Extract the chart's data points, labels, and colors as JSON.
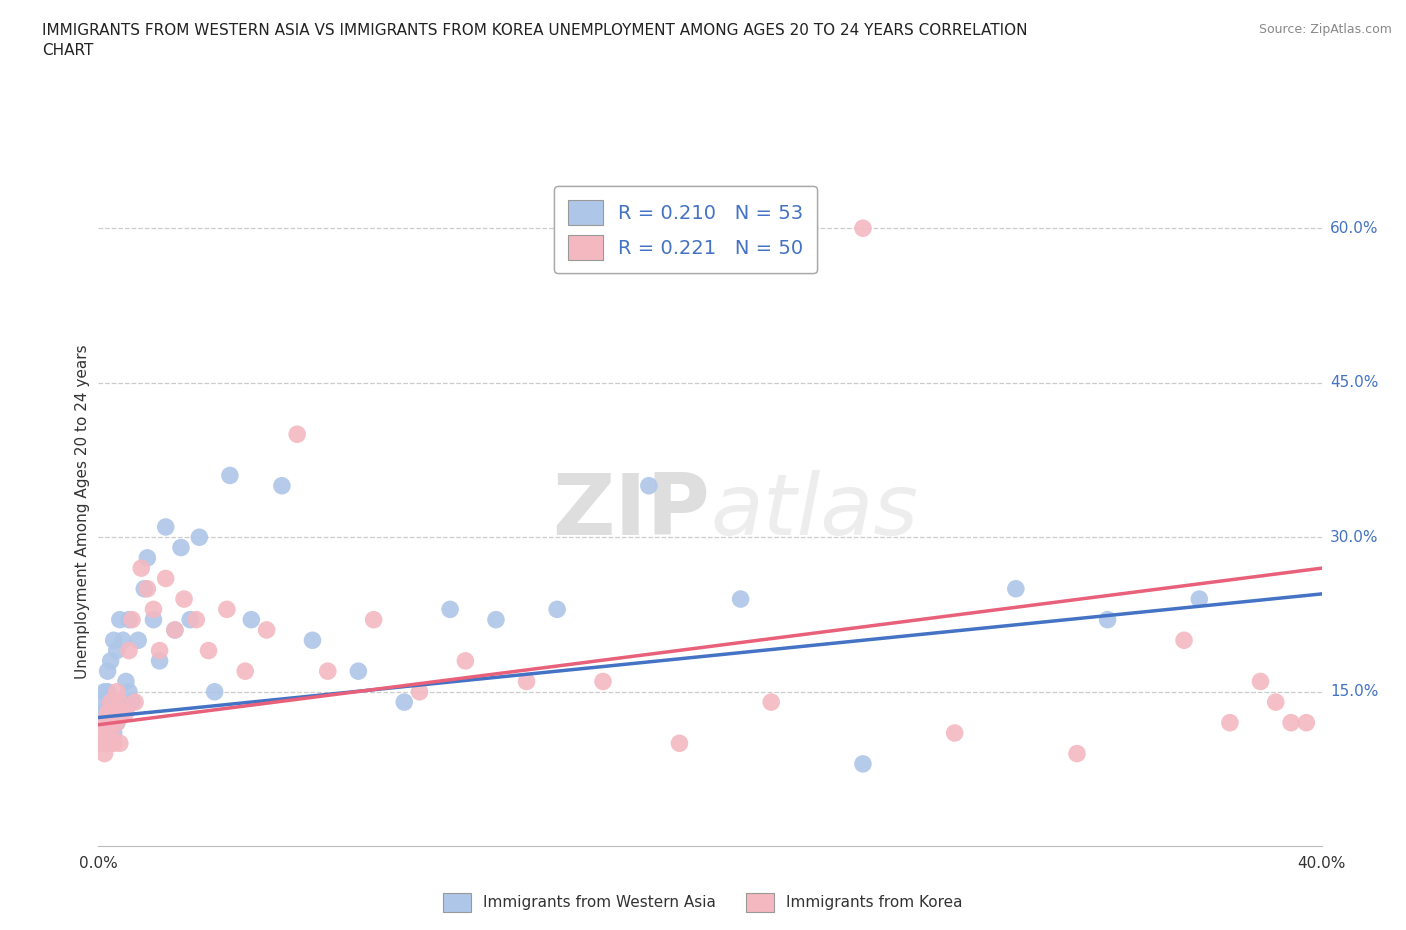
{
  "title": "IMMIGRANTS FROM WESTERN ASIA VS IMMIGRANTS FROM KOREA UNEMPLOYMENT AMONG AGES 20 TO 24 YEARS CORRELATION\nCHART",
  "source_text": "Source: ZipAtlas.com",
  "ylabel": "Unemployment Among Ages 20 to 24 years",
  "xlim": [
    0.0,
    0.4
  ],
  "ylim": [
    0.0,
    0.65
  ],
  "xticks": [
    0.0,
    0.1,
    0.2,
    0.3,
    0.4
  ],
  "xticklabels": [
    "0.0%",
    "",
    "",
    "",
    "40.0%"
  ],
  "ytick_positions": [
    0.15,
    0.3,
    0.45,
    0.6
  ],
  "ytick_labels": [
    "15.0%",
    "30.0%",
    "45.0%",
    "60.0%"
  ],
  "gridline_color": "#cccccc",
  "background_color": "#ffffff",
  "western_asia_color": "#aec6e8",
  "korea_color": "#f4b8c1",
  "trendline_western_asia_color": "#4472c4",
  "trendline_korea_color": "#e8607a",
  "R_western_asia": 0.21,
  "N_western_asia": 53,
  "R_korea": 0.221,
  "N_korea": 50,
  "legend_R_N_color": "#4472c4",
  "watermark_zip": "ZIP",
  "watermark_atlas": "atlas",
  "western_asia_x": [
    0.001,
    0.001,
    0.001,
    0.002,
    0.002,
    0.002,
    0.002,
    0.003,
    0.003,
    0.003,
    0.003,
    0.004,
    0.004,
    0.004,
    0.005,
    0.005,
    0.005,
    0.006,
    0.006,
    0.007,
    0.007,
    0.008,
    0.008,
    0.009,
    0.01,
    0.01,
    0.011,
    0.013,
    0.015,
    0.016,
    0.018,
    0.02,
    0.022,
    0.025,
    0.027,
    0.03,
    0.033,
    0.038,
    0.043,
    0.05,
    0.06,
    0.07,
    0.085,
    0.1,
    0.115,
    0.13,
    0.15,
    0.18,
    0.21,
    0.25,
    0.3,
    0.33,
    0.36
  ],
  "western_asia_y": [
    0.1,
    0.12,
    0.14,
    0.1,
    0.12,
    0.15,
    0.13,
    0.11,
    0.13,
    0.15,
    0.17,
    0.12,
    0.14,
    0.18,
    0.11,
    0.13,
    0.2,
    0.12,
    0.19,
    0.14,
    0.22,
    0.13,
    0.2,
    0.16,
    0.15,
    0.22,
    0.14,
    0.2,
    0.25,
    0.28,
    0.22,
    0.18,
    0.31,
    0.21,
    0.29,
    0.22,
    0.3,
    0.15,
    0.36,
    0.22,
    0.35,
    0.2,
    0.17,
    0.14,
    0.23,
    0.22,
    0.23,
    0.35,
    0.24,
    0.08,
    0.25,
    0.22,
    0.24
  ],
  "korea_x": [
    0.001,
    0.001,
    0.002,
    0.002,
    0.003,
    0.003,
    0.003,
    0.004,
    0.004,
    0.005,
    0.005,
    0.006,
    0.006,
    0.007,
    0.007,
    0.008,
    0.009,
    0.01,
    0.011,
    0.012,
    0.014,
    0.016,
    0.018,
    0.02,
    0.022,
    0.025,
    0.028,
    0.032,
    0.036,
    0.042,
    0.048,
    0.055,
    0.065,
    0.075,
    0.09,
    0.105,
    0.12,
    0.14,
    0.165,
    0.19,
    0.22,
    0.25,
    0.28,
    0.32,
    0.355,
    0.37,
    0.38,
    0.385,
    0.39,
    0.395
  ],
  "korea_y": [
    0.1,
    0.12,
    0.09,
    0.11,
    0.1,
    0.13,
    0.12,
    0.11,
    0.14,
    0.1,
    0.13,
    0.12,
    0.15,
    0.1,
    0.14,
    0.13,
    0.13,
    0.19,
    0.22,
    0.14,
    0.27,
    0.25,
    0.23,
    0.19,
    0.26,
    0.21,
    0.24,
    0.22,
    0.19,
    0.23,
    0.17,
    0.21,
    0.4,
    0.17,
    0.22,
    0.15,
    0.18,
    0.16,
    0.16,
    0.1,
    0.14,
    0.6,
    0.11,
    0.09,
    0.2,
    0.12,
    0.16,
    0.14,
    0.12,
    0.12
  ],
  "legend_box_color": "#ffffff",
  "legend_border_color": "#aaaaaa",
  "trendline_wa_start_y": 0.125,
  "trendline_wa_end_y": 0.245,
  "trendline_kr_start_y": 0.118,
  "trendline_kr_end_y": 0.27
}
